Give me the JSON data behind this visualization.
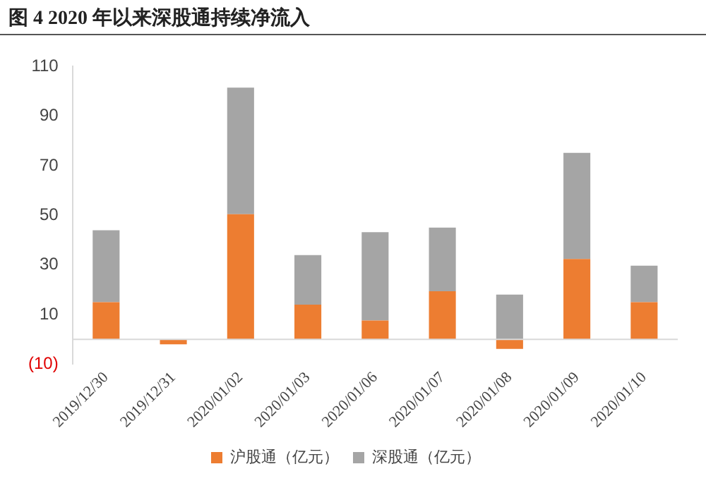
{
  "chart_data": {
    "type": "bar",
    "title": "图 4 2020 年以来深股通持续净流入",
    "stacked": true,
    "legend": "bottom",
    "grid": false,
    "categories": [
      "2019/12/30",
      "2019/12/31",
      "2020/01/02",
      "2020/01/03",
      "2020/01/06",
      "2020/01/07",
      "2020/01/08",
      "2020/01/09",
      "2020/01/10"
    ],
    "series": [
      {
        "name": "沪股通（亿元）",
        "color": "#ed7d31",
        "values": [
          15,
          -2,
          50.5,
          14,
          7.6,
          19.4,
          -3.8,
          32.4,
          15
        ]
      },
      {
        "name": "深股通（亿元）",
        "color": "#a5a5a5",
        "values": [
          29,
          null,
          51,
          20,
          35.6,
          25.7,
          18.1,
          42.8,
          14.7
        ]
      }
    ],
    "ylim": [
      -10,
      110
    ],
    "yticks": [
      {
        "value": -10,
        "label": "(10)"
      },
      10,
      30,
      50,
      70,
      90,
      110
    ]
  }
}
